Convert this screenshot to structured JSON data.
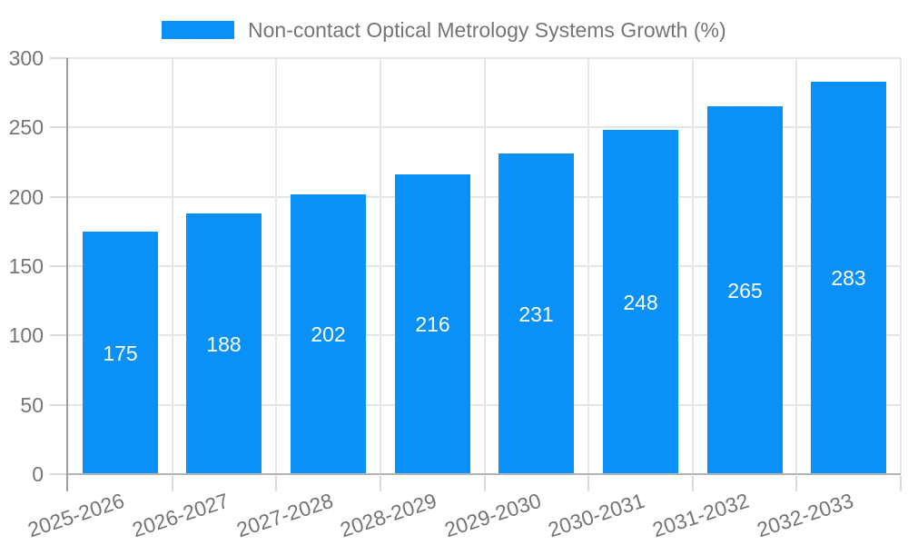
{
  "chart_data": {
    "type": "bar",
    "title": "Non-contact Optical Metrology Systems Growth (%)",
    "categories": [
      "2025-2026",
      "2026-2027",
      "2027-2028",
      "2028-2029",
      "2029-2030",
      "2030-2031",
      "2031-2032",
      "2032-2033"
    ],
    "values": [
      175,
      188,
      202,
      216,
      231,
      248,
      265,
      283
    ],
    "xlabel": "",
    "ylabel": "",
    "ylim": [
      0,
      300
    ],
    "yticks": [
      0,
      50,
      100,
      150,
      200,
      250,
      300
    ],
    "grid": true,
    "legend_position": "top",
    "colors": {
      "bar": "#0a91f8",
      "bar_value_label": "#ffffff",
      "axis_text": "#757575",
      "gridline": "#e6e6e6",
      "tick": "#d9d9d9",
      "y_axis_line": "#9e9e9e",
      "baseline": "#b5b5b5",
      "background": "#ffffff"
    }
  }
}
